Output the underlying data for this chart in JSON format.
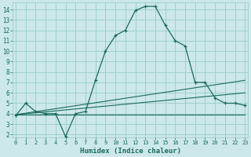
{
  "xlabel": "Humidex (Indice chaleur)",
  "background_color": "#cce8e8",
  "grid_color": "#99cccc",
  "line_color": "#1a6b5a",
  "x_ticks": [
    0,
    1,
    2,
    3,
    4,
    5,
    6,
    7,
    8,
    9,
    10,
    11,
    12,
    13,
    14,
    15,
    16,
    17,
    18,
    19,
    20,
    21,
    22,
    23
  ],
  "y_ticks": [
    2,
    3,
    4,
    5,
    6,
    7,
    8,
    9,
    10,
    11,
    12,
    13,
    14
  ],
  "xlim": [
    -0.3,
    23.3
  ],
  "ylim": [
    1.7,
    14.7
  ],
  "series_main": {
    "x": [
      0,
      1,
      2,
      3,
      4,
      5,
      6,
      7,
      8,
      9,
      10,
      11,
      12,
      13,
      14,
      15,
      16,
      17,
      18,
      19,
      20,
      21,
      22,
      23
    ],
    "y": [
      3.8,
      5.0,
      4.2,
      4.0,
      4.0,
      1.8,
      4.0,
      4.2,
      7.2,
      10.0,
      11.5,
      12.0,
      13.9,
      14.3,
      14.3,
      12.5,
      11.0,
      10.5,
      7.0,
      7.0,
      5.5,
      5.0,
      5.0,
      4.8
    ]
  },
  "series_flat": {
    "x": [
      0,
      23
    ],
    "y": [
      3.9,
      3.9
    ]
  },
  "series_diag1": {
    "x": [
      0,
      23
    ],
    "y": [
      3.9,
      7.2
    ]
  },
  "series_diag2": {
    "x": [
      0,
      23
    ],
    "y": [
      3.9,
      6.0
    ]
  }
}
